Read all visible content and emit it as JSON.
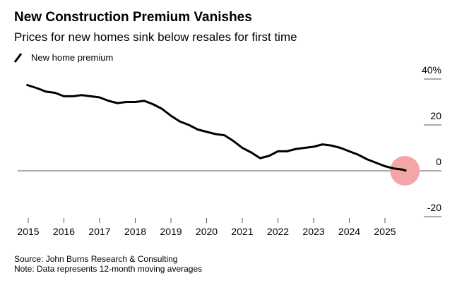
{
  "chart_data": {
    "type": "line",
    "title": "New Construction Premium Vanishes",
    "subtitle": "Prices for new homes sink below resales for first time",
    "x": [
      2014.95,
      2015.25,
      2015.5,
      2015.75,
      2016.0,
      2016.25,
      2016.5,
      2016.75,
      2017.0,
      2017.25,
      2017.5,
      2017.75,
      2018.0,
      2018.25,
      2018.5,
      2018.75,
      2019.0,
      2019.25,
      2019.5,
      2019.75,
      2020.0,
      2020.25,
      2020.5,
      2020.75,
      2021.0,
      2021.25,
      2021.5,
      2021.75,
      2022.0,
      2022.25,
      2022.5,
      2022.75,
      2023.0,
      2023.25,
      2023.5,
      2023.75,
      2024.0,
      2024.25,
      2024.5,
      2024.75,
      2025.0,
      2025.25,
      2025.5,
      2025.6
    ],
    "series": [
      {
        "name": "New home premium",
        "color": "#000000",
        "values": [
          37.5,
          36,
          34.5,
          34,
          32.5,
          32.5,
          33,
          32.5,
          32,
          30.5,
          29.5,
          30,
          30,
          30.5,
          29,
          27,
          24,
          21.5,
          20,
          18,
          17,
          16,
          15.5,
          13,
          10,
          8,
          5.5,
          6.5,
          8.5,
          8.5,
          9.5,
          10,
          10.5,
          11.5,
          11,
          10,
          8.5,
          7,
          5,
          3.5,
          2,
          1,
          0.5,
          0
        ]
      }
    ],
    "xlim": [
      2014.8,
      2025.8
    ],
    "xticks": [
      2015,
      2016,
      2017,
      2018,
      2019,
      2020,
      2021,
      2022,
      2023,
      2024,
      2025
    ],
    "ylim": [
      -20,
      40
    ],
    "yticks": [
      {
        "value": 40,
        "label": "40%"
      },
      20,
      0,
      -20
    ],
    "highlight_color": "#f4a6a6",
    "source": "Source: John Burns Research & Consulting",
    "note": "Note: Data represents 12-month moving averages"
  }
}
